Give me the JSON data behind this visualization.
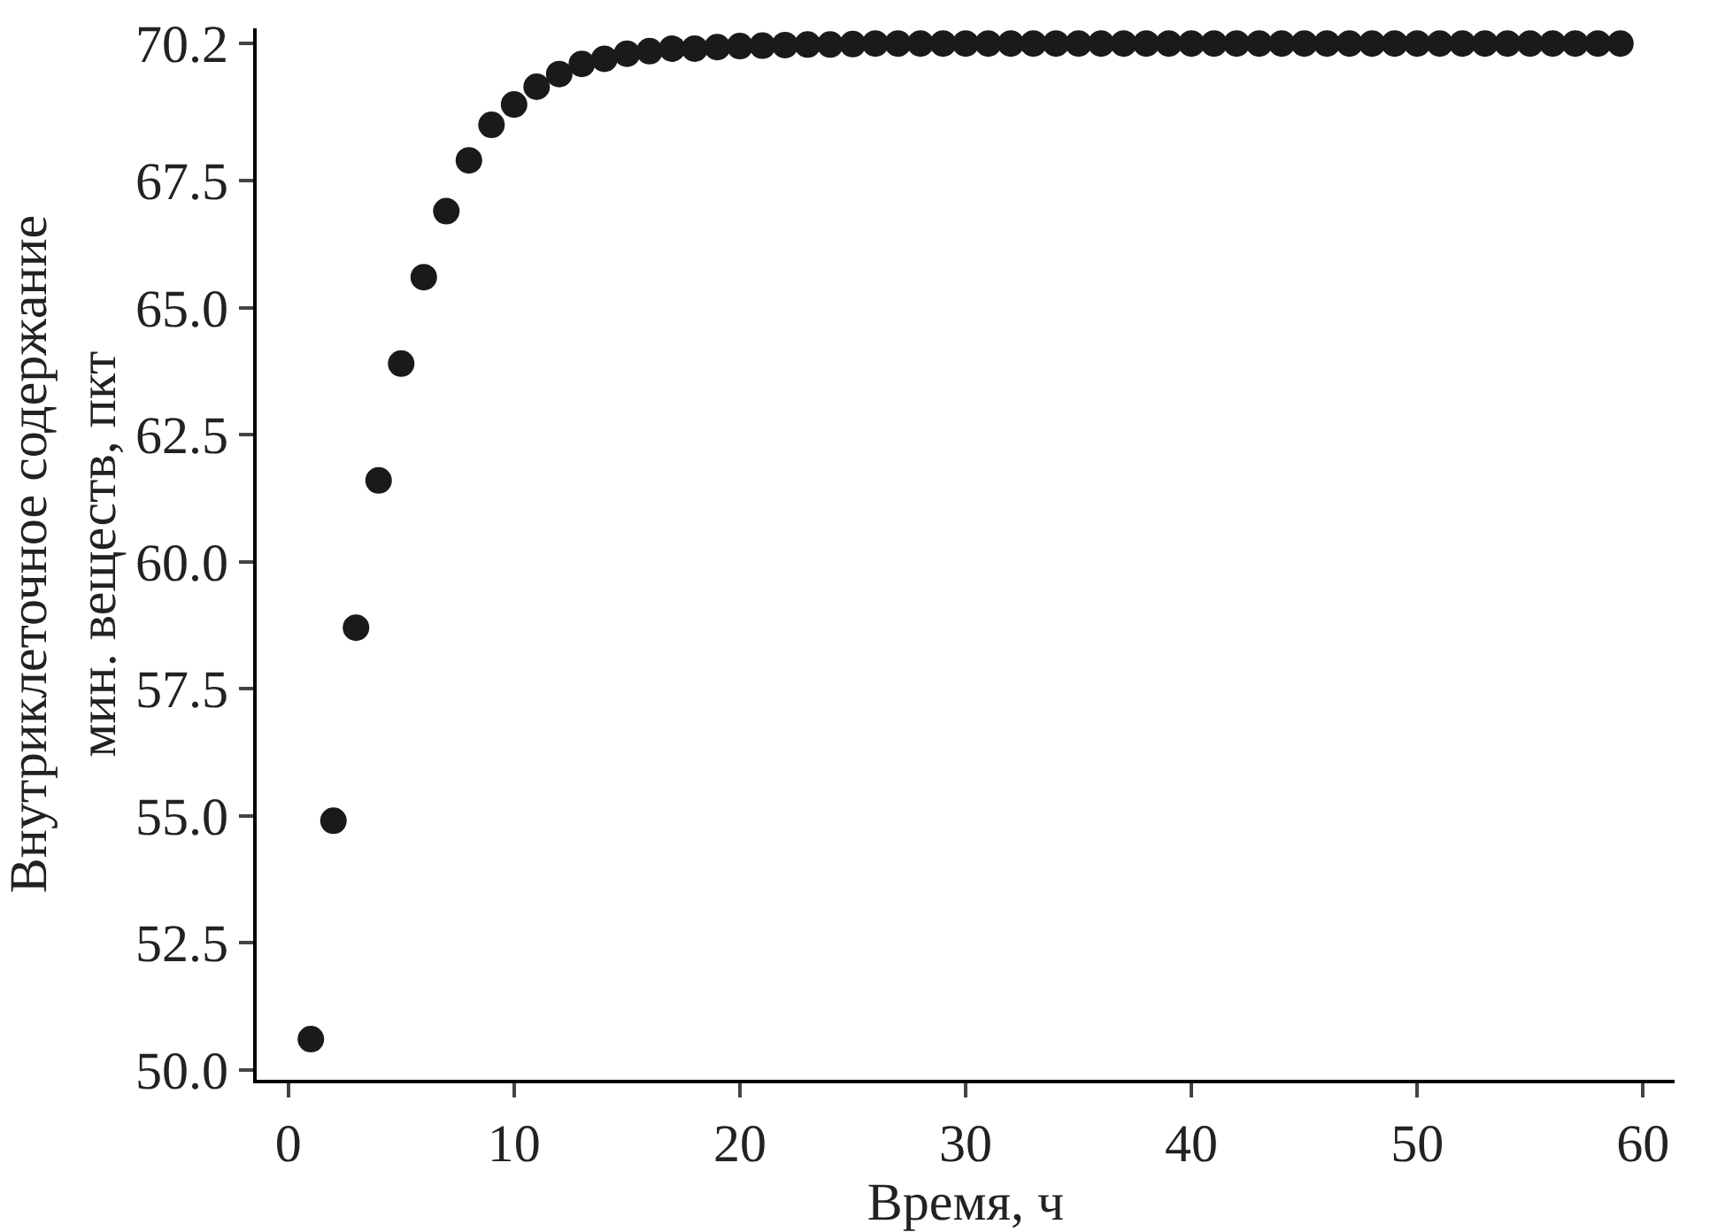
{
  "chart_data": {
    "type": "scatter",
    "xlabel": "Время, ч",
    "ylabel": "Внутриклеточное содержание\nмин. веществ, пкт",
    "x": [
      1,
      2,
      3,
      4,
      5,
      6,
      7,
      8,
      9,
      10,
      11,
      12,
      13,
      14,
      15,
      16,
      17,
      18,
      19,
      20,
      21,
      22,
      23,
      24,
      25,
      26,
      27,
      28,
      29,
      30,
      31,
      32,
      33,
      34,
      35,
      36,
      37,
      38,
      39,
      40,
      41,
      42,
      43,
      44,
      45,
      46,
      47,
      48,
      49,
      50,
      51,
      52,
      53,
      54,
      55,
      56,
      57,
      58,
      59
    ],
    "series": [
      {
        "color": "#1a1a1a",
        "values": [
          50.6,
          54.9,
          58.7,
          61.6,
          63.9,
          65.6,
          66.9,
          67.9,
          68.6,
          69.0,
          69.35,
          69.6,
          69.8,
          69.9,
          70.0,
          70.05,
          70.1,
          70.1,
          70.13,
          70.15,
          70.16,
          70.17,
          70.18,
          70.18,
          70.19,
          70.2,
          70.2,
          70.2,
          70.2,
          70.2,
          70.2,
          70.2,
          70.2,
          70.2,
          70.2,
          70.2,
          70.2,
          70.2,
          70.2,
          70.2,
          70.2,
          70.2,
          70.2,
          70.2,
          70.2,
          70.2,
          70.2,
          70.2,
          70.2,
          70.2,
          70.2,
          70.2,
          70.2,
          70.2,
          70.2,
          70.2,
          70.2,
          70.2,
          70.2
        ]
      }
    ],
    "xlim": [
      -1.4,
      61.4
    ],
    "xticks": [
      0,
      10,
      20,
      30,
      40,
      50,
      60
    ],
    "ylim": [
      49.8,
      70.5
    ],
    "yticks": [
      {
        "value": 50,
        "label": "50.0"
      },
      {
        "value": 52.5,
        "label": "52.5"
      },
      {
        "value": 55,
        "label": "55.0"
      },
      {
        "value": 57.5,
        "label": "57.5"
      },
      {
        "value": 60,
        "label": "60.0"
      },
      {
        "value": 62.5,
        "label": "62.5"
      },
      {
        "value": 65,
        "label": "65.0"
      },
      {
        "value": 67.5,
        "label": "67.5"
      },
      {
        "value": 70.2,
        "label": "70.2"
      }
    ],
    "marker": "circle"
  }
}
